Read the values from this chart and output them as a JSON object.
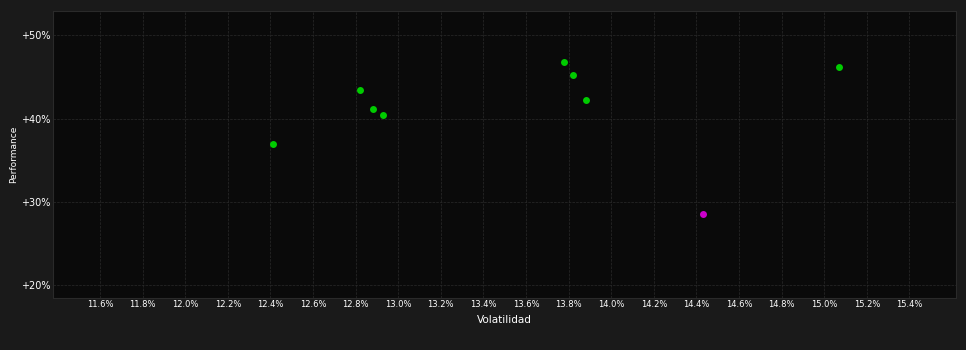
{
  "background_color": "#1a1a1a",
  "plot_bg_color": "#0a0a0a",
  "grid_color": "#2a2a2a",
  "text_color": "#ffffff",
  "xlabel": "Volatilidad",
  "ylabel": "Performance",
  "xlim": [
    11.38,
    15.62
  ],
  "ylim": [
    18.5,
    53.0
  ],
  "xtick_values": [
    11.6,
    11.8,
    12.0,
    12.2,
    12.4,
    12.6,
    12.8,
    13.0,
    13.2,
    13.4,
    13.6,
    13.8,
    14.0,
    14.2,
    14.4,
    14.6,
    14.8,
    15.0,
    15.2,
    15.4
  ],
  "ytick_values": [
    20,
    30,
    40,
    50
  ],
  "ytick_labels": [
    "+20%",
    "+30%",
    "+40%",
    "+50%"
  ],
  "green_points": [
    [
      12.41,
      37.0
    ],
    [
      12.82,
      43.5
    ],
    [
      12.88,
      41.2
    ],
    [
      12.93,
      40.4
    ],
    [
      13.78,
      46.8
    ],
    [
      13.82,
      45.3
    ],
    [
      13.88,
      42.2
    ],
    [
      15.07,
      46.2
    ]
  ],
  "magenta_points": [
    [
      14.43,
      28.5
    ]
  ],
  "green_color": "#00cc00",
  "magenta_color": "#cc00cc",
  "marker_size": 5,
  "figsize": [
    9.66,
    3.5
  ],
  "dpi": 100
}
